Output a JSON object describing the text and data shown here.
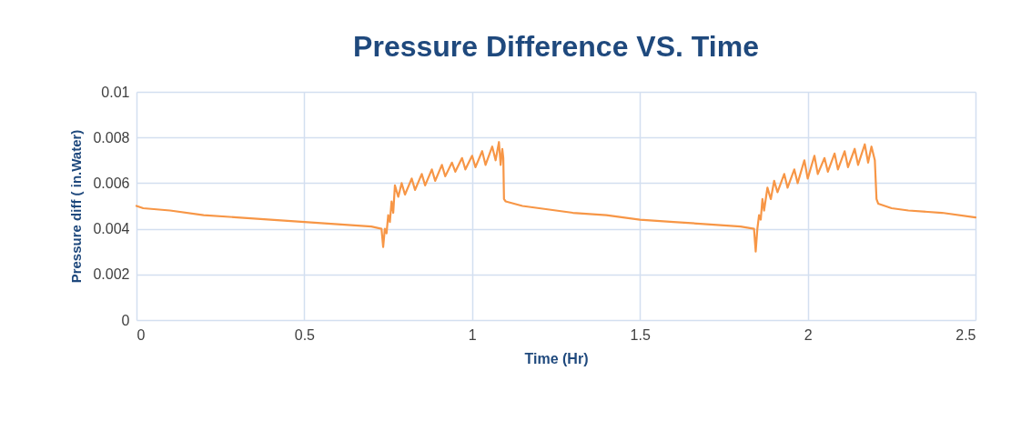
{
  "chart_data": {
    "type": "line",
    "title": "Pressure Difference VS. Time",
    "xlabel": "Time (Hr)",
    "ylabel": "Pressure diff ( in.Water)",
    "xlim": [
      0,
      2.5
    ],
    "xticks": [
      0,
      0.5,
      1,
      1.5,
      2,
      2.5
    ],
    "ylim": [
      0,
      0.01
    ],
    "yticks": [
      0,
      0.002,
      0.004,
      0.006,
      0.008,
      0.01
    ],
    "grid": true,
    "marker": "none",
    "line_style": "solid",
    "x": [
      0,
      0.02,
      0.1,
      0.2,
      0.3,
      0.4,
      0.5,
      0.6,
      0.7,
      0.73,
      0.735,
      0.74,
      0.745,
      0.75,
      0.755,
      0.76,
      0.765,
      0.77,
      0.78,
      0.79,
      0.8,
      0.82,
      0.83,
      0.85,
      0.86,
      0.88,
      0.89,
      0.91,
      0.92,
      0.94,
      0.95,
      0.97,
      0.98,
      1.0,
      1.01,
      1.03,
      1.04,
      1.06,
      1.07,
      1.08,
      1.085,
      1.09,
      1.093,
      1.095,
      1.1,
      1.15,
      1.2,
      1.3,
      1.4,
      1.5,
      1.6,
      1.7,
      1.8,
      1.84,
      1.845,
      1.85,
      1.855,
      1.86,
      1.865,
      1.87,
      1.88,
      1.89,
      1.9,
      1.91,
      1.93,
      1.94,
      1.96,
      1.97,
      1.99,
      2.0,
      2.02,
      2.03,
      2.05,
      2.06,
      2.08,
      2.09,
      2.11,
      2.12,
      2.14,
      2.15,
      2.17,
      2.18,
      2.19,
      2.2,
      2.205,
      2.21,
      2.25,
      2.3,
      2.4,
      2.5
    ],
    "series": [
      {
        "color": "#f79646",
        "values": [
          0.005,
          0.0049,
          0.0048,
          0.0046,
          0.0045,
          0.0044,
          0.0043,
          0.0042,
          0.0041,
          0.004,
          0.0032,
          0.004,
          0.0038,
          0.0046,
          0.0043,
          0.0052,
          0.0047,
          0.0059,
          0.0054,
          0.006,
          0.0055,
          0.0062,
          0.0057,
          0.0064,
          0.0059,
          0.0066,
          0.0061,
          0.0068,
          0.0063,
          0.0069,
          0.0065,
          0.0071,
          0.0066,
          0.0072,
          0.0067,
          0.0074,
          0.0068,
          0.0076,
          0.007,
          0.0078,
          0.0068,
          0.0075,
          0.0071,
          0.0053,
          0.0052,
          0.005,
          0.0049,
          0.0047,
          0.0046,
          0.0044,
          0.0043,
          0.0042,
          0.0041,
          0.004,
          0.003,
          0.004,
          0.0046,
          0.0044,
          0.0053,
          0.0048,
          0.0058,
          0.0053,
          0.0061,
          0.0056,
          0.0064,
          0.0058,
          0.0066,
          0.006,
          0.007,
          0.0062,
          0.0072,
          0.0064,
          0.0071,
          0.0065,
          0.0073,
          0.0066,
          0.0074,
          0.0067,
          0.0075,
          0.0068,
          0.0077,
          0.0069,
          0.0076,
          0.007,
          0.0053,
          0.0051,
          0.0049,
          0.0048,
          0.0047,
          0.0045
        ]
      }
    ]
  }
}
